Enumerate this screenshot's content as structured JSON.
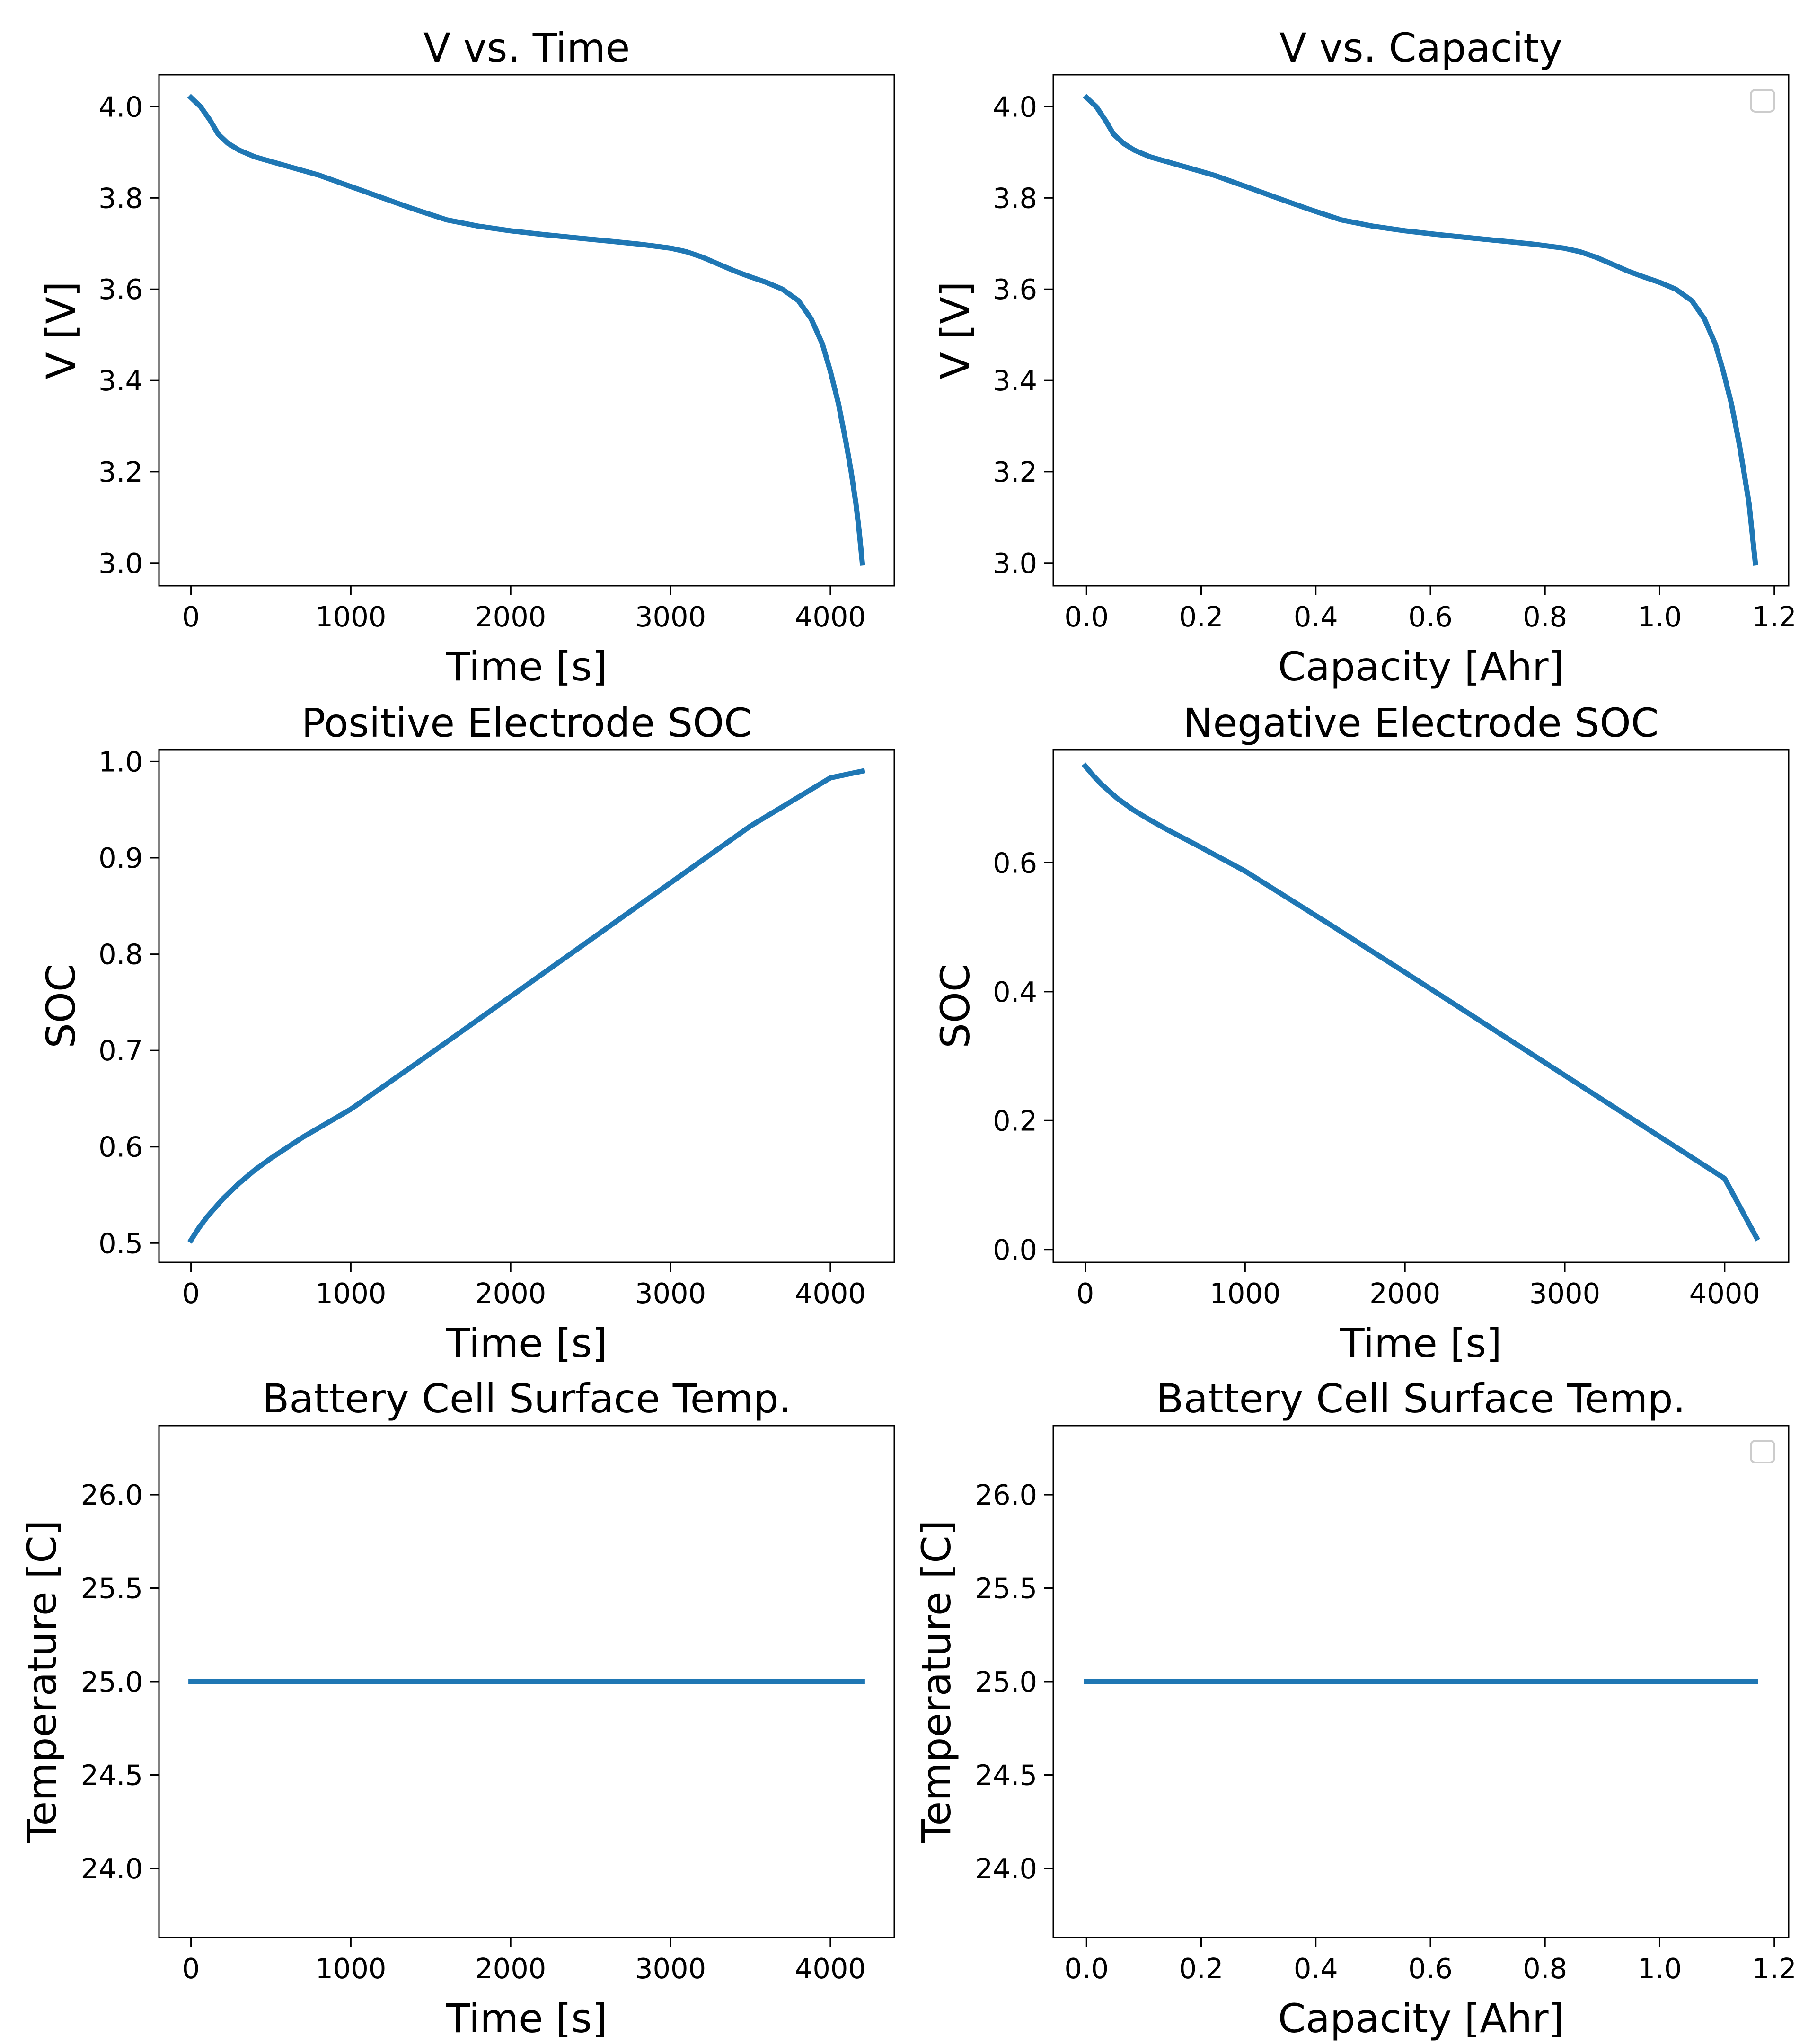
{
  "figure": {
    "background": "#ffffff",
    "line_color": "#1f77b4"
  },
  "chart_data": [
    {
      "id": "v-vs-time",
      "type": "line",
      "title": "V vs. Time",
      "xlabel": "Time [s]",
      "ylabel": "V [V]",
      "xlim": [
        -200,
        4400
      ],
      "ylim": [
        2.95,
        4.07
      ],
      "xticks": [
        0,
        1000,
        2000,
        3000,
        4000
      ],
      "xtick_labels": [
        "0",
        "1000",
        "2000",
        "3000",
        "4000"
      ],
      "yticks": [
        3.0,
        3.2,
        3.4,
        3.6,
        3.8,
        4.0
      ],
      "ytick_labels": [
        "3.0",
        "3.2",
        "3.4",
        "3.6",
        "3.8",
        "4.0"
      ],
      "legend": "none",
      "grid": false,
      "series": [
        {
          "x": [
            0,
            60,
            120,
            170,
            230,
            300,
            400,
            600,
            800,
            1000,
            1200,
            1400,
            1600,
            1800,
            2000,
            2200,
            2400,
            2600,
            2800,
            3000,
            3100,
            3200,
            3300,
            3400,
            3500,
            3600,
            3700,
            3800,
            3880,
            3950,
            4000,
            4050,
            4100,
            4130,
            4160,
            4180,
            4200
          ],
          "y": [
            4.02,
            4.0,
            3.97,
            3.94,
            3.92,
            3.905,
            3.89,
            3.87,
            3.85,
            3.825,
            3.8,
            3.775,
            3.752,
            3.738,
            3.728,
            3.72,
            3.713,
            3.706,
            3.699,
            3.69,
            3.682,
            3.67,
            3.655,
            3.64,
            3.627,
            3.615,
            3.6,
            3.575,
            3.535,
            3.48,
            3.42,
            3.35,
            3.26,
            3.2,
            3.13,
            3.07,
            3.0
          ]
        }
      ]
    },
    {
      "id": "v-vs-capacity",
      "type": "line",
      "title": "V vs. Capacity",
      "xlabel": "Capacity [Ahr]",
      "ylabel": "V [V]",
      "xlim": [
        -0.058,
        1.225
      ],
      "ylim": [
        2.95,
        4.07
      ],
      "xticks": [
        0.0,
        0.2,
        0.4,
        0.6,
        0.8,
        1.0,
        1.2
      ],
      "xtick_labels": [
        "0.0",
        "0.2",
        "0.4",
        "0.6",
        "0.8",
        "1.0",
        "1.2"
      ],
      "yticks": [
        3.0,
        3.2,
        3.4,
        3.6,
        3.8,
        4.0
      ],
      "ytick_labels": [
        "3.0",
        "3.2",
        "3.4",
        "3.6",
        "3.8",
        "4.0"
      ],
      "legend": "top-right (empty box)",
      "grid": false,
      "series": [
        {
          "x": [
            0,
            0.017,
            0.033,
            0.047,
            0.064,
            0.083,
            0.111,
            0.167,
            0.222,
            0.278,
            0.333,
            0.389,
            0.444,
            0.5,
            0.556,
            0.611,
            0.667,
            0.722,
            0.778,
            0.833,
            0.861,
            0.889,
            0.917,
            0.944,
            0.972,
            1.0,
            1.028,
            1.056,
            1.078,
            1.097,
            1.111,
            1.125,
            1.139,
            1.147,
            1.156,
            1.161,
            1.167
          ],
          "y": [
            4.02,
            4.0,
            3.97,
            3.94,
            3.92,
            3.905,
            3.89,
            3.87,
            3.85,
            3.825,
            3.8,
            3.775,
            3.752,
            3.738,
            3.728,
            3.72,
            3.713,
            3.706,
            3.699,
            3.69,
            3.682,
            3.67,
            3.655,
            3.64,
            3.627,
            3.615,
            3.6,
            3.575,
            3.535,
            3.48,
            3.42,
            3.35,
            3.26,
            3.2,
            3.13,
            3.07,
            3.0
          ]
        }
      ]
    },
    {
      "id": "positive-soc",
      "type": "line",
      "title": "Positive Electrode SOC",
      "xlabel": "Time [s]",
      "ylabel": "SOC",
      "xlim": [
        -200,
        4400
      ],
      "ylim": [
        0.48,
        1.012
      ],
      "xticks": [
        0,
        1000,
        2000,
        3000,
        4000
      ],
      "xtick_labels": [
        "0",
        "1000",
        "2000",
        "3000",
        "4000"
      ],
      "yticks": [
        0.5,
        0.6,
        0.7,
        0.8,
        0.9,
        1.0
      ],
      "ytick_labels": [
        "0.5",
        "0.6",
        "0.7",
        "0.8",
        "0.9",
        "1.0"
      ],
      "legend": "none",
      "grid": false,
      "series": [
        {
          "x": [
            0,
            50,
            100,
            200,
            300,
            400,
            500,
            700,
            1000,
            1500,
            2000,
            2500,
            3000,
            3500,
            4000,
            4200
          ],
          "y": [
            0.503,
            0.516,
            0.527,
            0.546,
            0.562,
            0.576,
            0.588,
            0.61,
            0.639,
            0.697,
            0.756,
            0.815,
            0.874,
            0.933,
            0.983,
            0.99
          ]
        }
      ]
    },
    {
      "id": "negative-soc",
      "type": "line",
      "title": "Negative Electrode SOC",
      "xlabel": "Time [s]",
      "ylabel": "SOC",
      "xlim": [
        -200,
        4400
      ],
      "ylim": [
        -0.02,
        0.775
      ],
      "xticks": [
        0,
        1000,
        2000,
        3000,
        4000
      ],
      "xtick_labels": [
        "0",
        "1000",
        "2000",
        "3000",
        "4000"
      ],
      "yticks": [
        0.0,
        0.2,
        0.4,
        0.6
      ],
      "ytick_labels": [
        "0.0",
        "0.2",
        "0.4",
        "0.6"
      ],
      "legend": "none",
      "grid": false,
      "series": [
        {
          "x": [
            0,
            50,
            100,
            200,
            300,
            400,
            500,
            700,
            1000,
            1500,
            2000,
            2500,
            3000,
            3500,
            4000,
            4200
          ],
          "y": [
            0.75,
            0.735,
            0.722,
            0.7,
            0.682,
            0.667,
            0.653,
            0.627,
            0.587,
            0.509,
            0.43,
            0.35,
            0.27,
            0.19,
            0.11,
            0.018
          ]
        }
      ]
    },
    {
      "id": "temp-vs-time",
      "type": "line",
      "title": "Battery Cell Surface Temp.",
      "xlabel": "Time [s]",
      "ylabel": "Temperature [C]",
      "xlim": [
        -200,
        4400
      ],
      "ylim": [
        23.63,
        26.37
      ],
      "xticks": [
        0,
        1000,
        2000,
        3000,
        4000
      ],
      "xtick_labels": [
        "0",
        "1000",
        "2000",
        "3000",
        "4000"
      ],
      "yticks": [
        24.0,
        24.5,
        25.0,
        25.5,
        26.0
      ],
      "ytick_labels": [
        "24.0",
        "24.5",
        "25.0",
        "25.5",
        "26.0"
      ],
      "legend": "none",
      "grid": false,
      "series": [
        {
          "x": [
            0,
            4200
          ],
          "y": [
            25.0,
            25.0
          ]
        }
      ]
    },
    {
      "id": "temp-vs-capacity",
      "type": "line",
      "title": "Battery Cell Surface Temp.",
      "xlabel": "Capacity [Ahr]",
      "ylabel": "Temperature [C]",
      "xlim": [
        -0.058,
        1.225
      ],
      "ylim": [
        23.63,
        26.37
      ],
      "xticks": [
        0.0,
        0.2,
        0.4,
        0.6,
        0.8,
        1.0,
        1.2
      ],
      "xtick_labels": [
        "0.0",
        "0.2",
        "0.4",
        "0.6",
        "0.8",
        "1.0",
        "1.2"
      ],
      "yticks": [
        24.0,
        24.5,
        25.0,
        25.5,
        26.0
      ],
      "ytick_labels": [
        "24.0",
        "24.5",
        "25.0",
        "25.5",
        "26.0"
      ],
      "legend": "top-right (empty box)",
      "grid": false,
      "series": [
        {
          "x": [
            0,
            1.167
          ],
          "y": [
            25.0,
            25.0
          ]
        }
      ]
    }
  ]
}
